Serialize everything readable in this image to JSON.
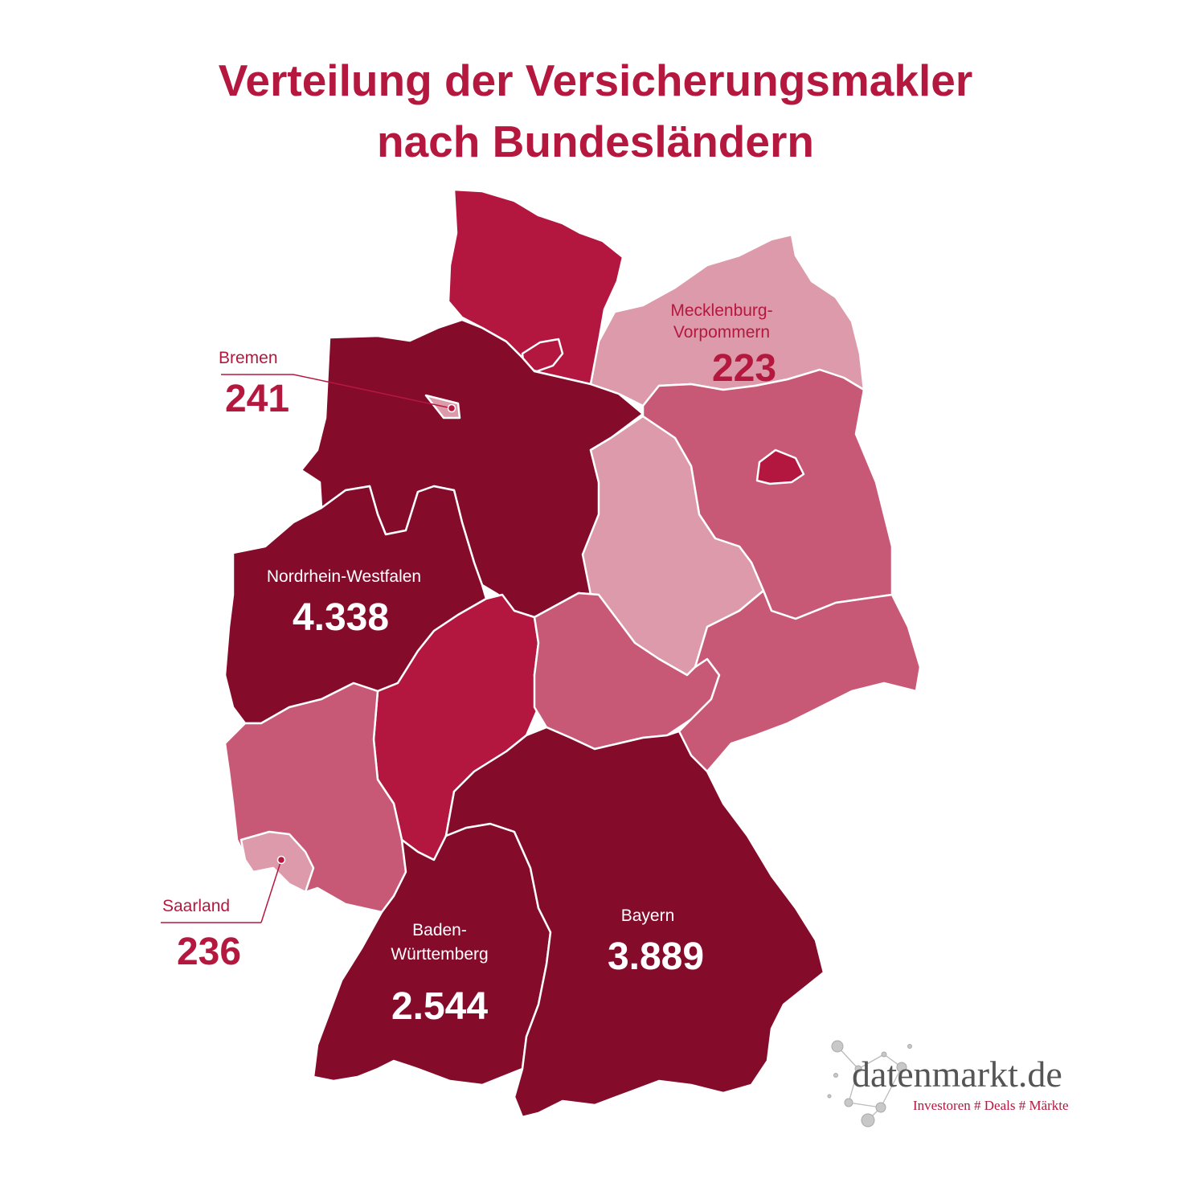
{
  "title": {
    "line1": "Verteilung der Versicherungsmakler",
    "line2": "nach Bundesländern"
  },
  "colors": {
    "title": "#b5183f",
    "very_high": "#850b2b",
    "high": "#b3173f",
    "medium": "#c85976",
    "low": "#dc9aaa",
    "border": "#ffffff",
    "label_on_dark": "#ffffff",
    "label_on_light": "#b5183f"
  },
  "states": [
    {
      "id": "schleswig-holstein",
      "shade": "high"
    },
    {
      "id": "hamburg",
      "shade": "high"
    },
    {
      "id": "niedersachsen",
      "shade": "very_high"
    },
    {
      "id": "bremen",
      "shade": "low"
    },
    {
      "id": "mecklenburg-vorpommern",
      "shade": "low"
    },
    {
      "id": "brandenburg",
      "shade": "medium"
    },
    {
      "id": "berlin",
      "shade": "high"
    },
    {
      "id": "sachsen-anhalt",
      "shade": "low"
    },
    {
      "id": "nordrhein-westfalen",
      "shade": "very_high"
    },
    {
      "id": "hessen",
      "shade": "high"
    },
    {
      "id": "thueringen",
      "shade": "medium"
    },
    {
      "id": "sachsen",
      "shade": "medium"
    },
    {
      "id": "rheinland-pfalz",
      "shade": "medium"
    },
    {
      "id": "saarland",
      "shade": "low"
    },
    {
      "id": "baden-wuerttemberg",
      "shade": "very_high"
    },
    {
      "id": "bayern",
      "shade": "very_high"
    }
  ],
  "labels": {
    "mv": {
      "name_line1": "Mecklenburg-",
      "name_line2": "Vorpommern",
      "value": "223"
    },
    "bremen": {
      "name": "Bremen",
      "value": "241"
    },
    "nrw": {
      "name": "Nordrhein-Westfalen",
      "value": "4.338"
    },
    "saarland": {
      "name": "Saarland",
      "value": "236"
    },
    "bw": {
      "name_line1": "Baden-",
      "name_line2": "Württemberg",
      "value": "2.544"
    },
    "bayern": {
      "name": "Bayern",
      "value": "3.889"
    }
  },
  "logo": {
    "brand": "datenmarkt.de",
    "tagline": "Investoren # Deals # Märkte",
    "icon": "network-dots-icon"
  }
}
